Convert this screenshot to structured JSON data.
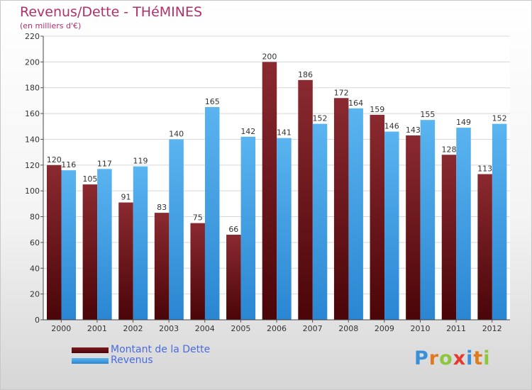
{
  "chart_data": {
    "type": "bar",
    "title": "Revenus/Dette - THéMINES",
    "subtitle": "(en milliers d'€)",
    "xlabel": "",
    "ylabel": "",
    "categories": [
      "2000",
      "2001",
      "2002",
      "2003",
      "2004",
      "2005",
      "2006",
      "2007",
      "2008",
      "2009",
      "2010",
      "2011",
      "2012"
    ],
    "series": [
      {
        "name": "Montant de la Dette",
        "color": "#7a1a1f",
        "values": [
          120,
          105,
          91,
          83,
          75,
          66,
          200,
          186,
          172,
          159,
          143,
          128,
          113
        ]
      },
      {
        "name": "Revenus",
        "color": "#3aa0e8",
        "values": [
          116,
          117,
          119,
          140,
          165,
          142,
          141,
          152,
          164,
          146,
          155,
          149,
          152
        ]
      }
    ],
    "ylim": [
      0,
      220
    ],
    "yticks": [
      0,
      20,
      40,
      60,
      80,
      100,
      120,
      140,
      160,
      180,
      200,
      220
    ],
    "grid": true,
    "legend_position": "bottom-left"
  },
  "brand": {
    "letters": [
      "P",
      "r",
      "o",
      "x",
      "i",
      "t",
      "i"
    ],
    "colors": [
      "#3a8fd8",
      "#e07a1f",
      "#8dc63f",
      "#e63a2e",
      "#3a8fd8",
      "#e07a1f",
      "#8dc63f"
    ]
  }
}
